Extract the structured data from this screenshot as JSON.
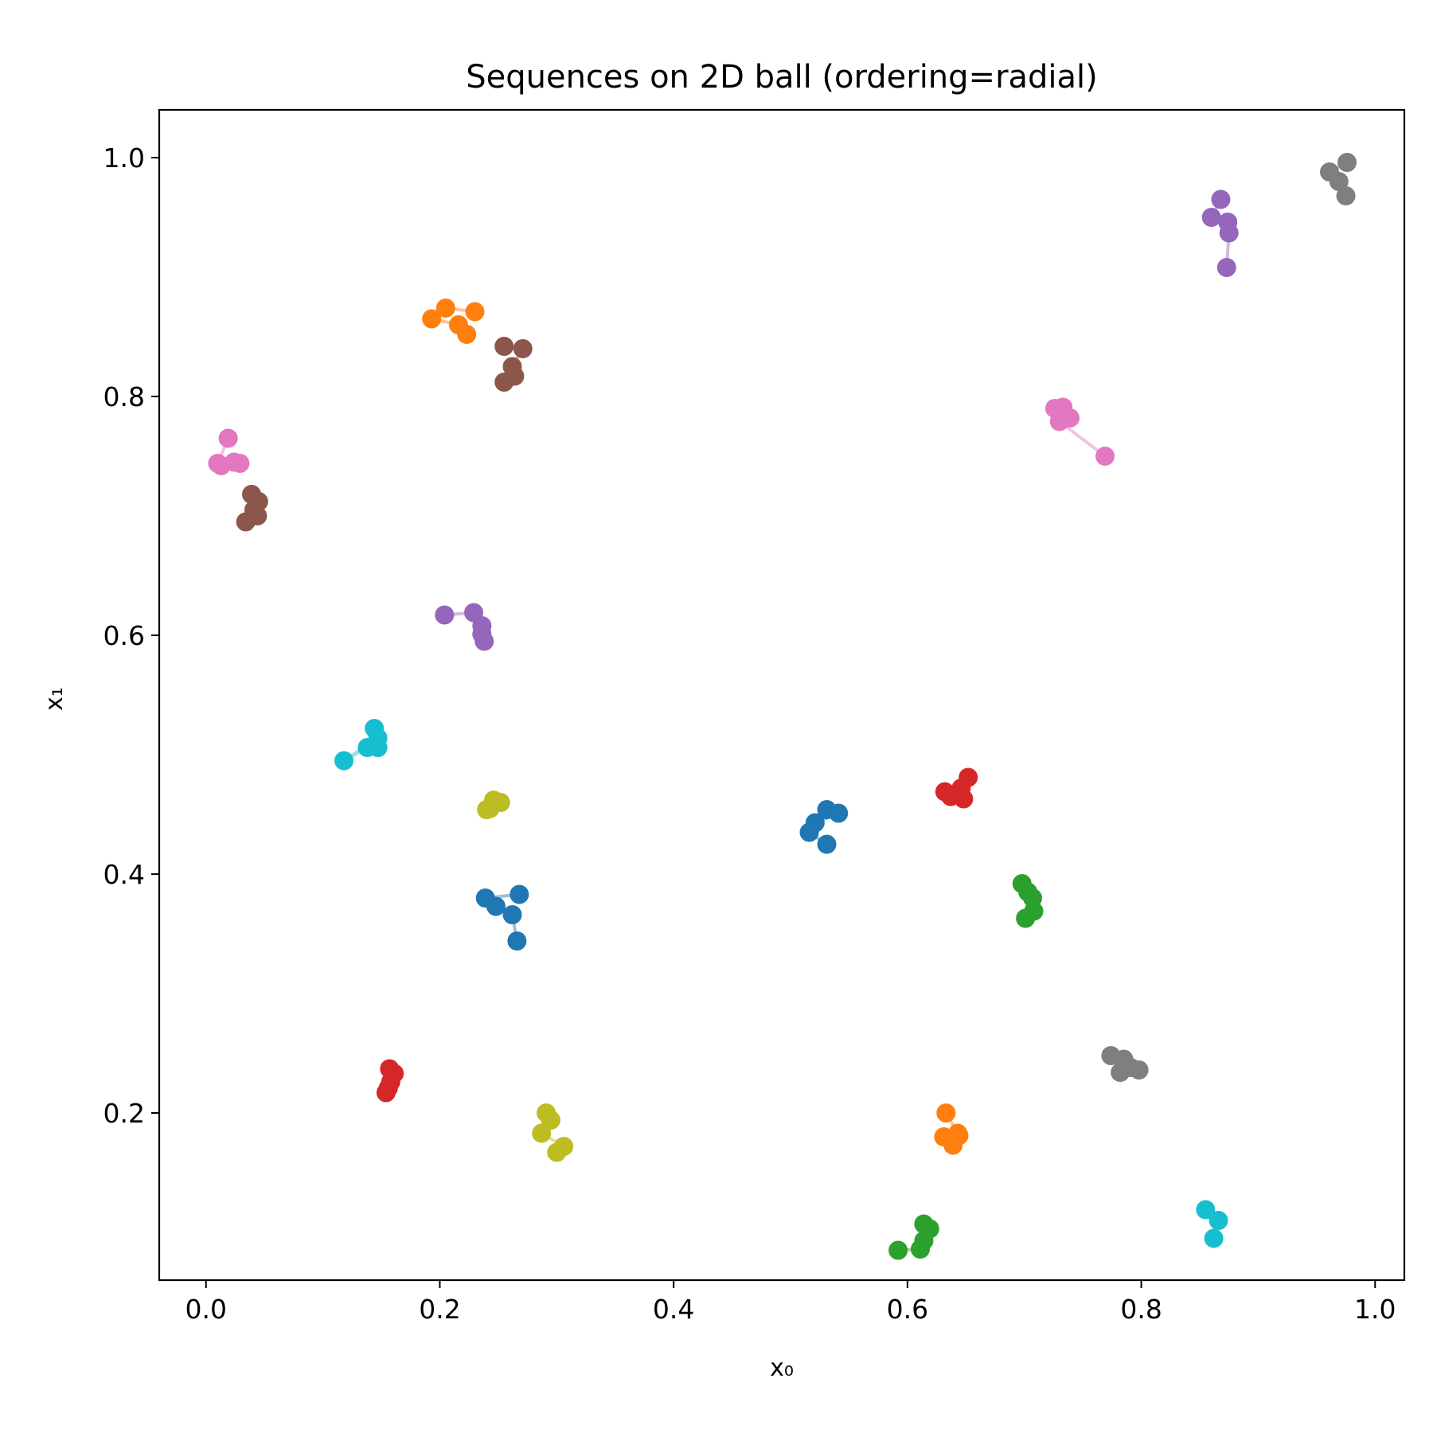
{
  "chart_data": {
    "type": "scatter",
    "title": "Sequences on 2D ball (ordering=radial)",
    "xlabel": "x₀",
    "ylabel": "x₁",
    "xlim": [
      -0.04,
      1.025
    ],
    "ylim": [
      0.06,
      1.04
    ],
    "xticks": [
      "0.0",
      "0.2",
      "0.4",
      "0.6",
      "0.8",
      "1.0"
    ],
    "yticks": [
      "0.2",
      "0.4",
      "0.6",
      "0.8",
      "1.0"
    ],
    "grid": false,
    "series": [
      {
        "color": "#1f77b4",
        "points": [
          [
            0.268,
            0.383
          ],
          [
            0.239,
            0.38
          ],
          [
            0.248,
            0.373
          ],
          [
            0.262,
            0.366
          ],
          [
            0.266,
            0.344
          ]
        ]
      },
      {
        "color": "#1f77b4",
        "points": [
          [
            0.531,
            0.454
          ],
          [
            0.541,
            0.451
          ],
          [
            0.521,
            0.443
          ],
          [
            0.516,
            0.435
          ],
          [
            0.531,
            0.425
          ]
        ]
      },
      {
        "color": "#ff7f0e",
        "points": [
          [
            0.23,
            0.871
          ],
          [
            0.205,
            0.874
          ],
          [
            0.193,
            0.865
          ],
          [
            0.216,
            0.86
          ],
          [
            0.223,
            0.852
          ]
        ]
      },
      {
        "color": "#ff7f0e",
        "points": [
          [
            0.633,
            0.2
          ],
          [
            0.643,
            0.183
          ],
          [
            0.631,
            0.18
          ],
          [
            0.639,
            0.173
          ],
          [
            0.644,
            0.181
          ]
        ]
      },
      {
        "color": "#2ca02c",
        "points": [
          [
            0.698,
            0.392
          ],
          [
            0.703,
            0.385
          ],
          [
            0.707,
            0.38
          ],
          [
            0.708,
            0.369
          ],
          [
            0.701,
            0.363
          ]
        ]
      },
      {
        "color": "#2ca02c",
        "points": [
          [
            0.614,
            0.107
          ],
          [
            0.619,
            0.103
          ],
          [
            0.614,
            0.093
          ],
          [
            0.611,
            0.086
          ],
          [
            0.592,
            0.085
          ]
        ]
      },
      {
        "color": "#d62728",
        "points": [
          [
            0.652,
            0.481
          ],
          [
            0.632,
            0.469
          ],
          [
            0.646,
            0.472
          ],
          [
            0.637,
            0.465
          ],
          [
            0.648,
            0.463
          ]
        ]
      },
      {
        "color": "#d62728",
        "points": [
          [
            0.157,
            0.237
          ],
          [
            0.161,
            0.233
          ],
          [
            0.158,
            0.226
          ],
          [
            0.156,
            0.221
          ],
          [
            0.154,
            0.217
          ]
        ]
      },
      {
        "color": "#9467bd",
        "points": [
          [
            0.204,
            0.617
          ],
          [
            0.229,
            0.619
          ],
          [
            0.236,
            0.608
          ],
          [
            0.236,
            0.601
          ],
          [
            0.238,
            0.595
          ]
        ]
      },
      {
        "color": "#9467bd",
        "points": [
          [
            0.868,
            0.965
          ],
          [
            0.86,
            0.95
          ],
          [
            0.874,
            0.946
          ],
          [
            0.875,
            0.937
          ],
          [
            0.873,
            0.908
          ]
        ]
      },
      {
        "color": "#8c564b",
        "points": [
          [
            0.255,
            0.842
          ],
          [
            0.271,
            0.84
          ],
          [
            0.262,
            0.825
          ],
          [
            0.264,
            0.817
          ],
          [
            0.255,
            0.812
          ]
        ]
      },
      {
        "color": "#8c564b",
        "points": [
          [
            0.039,
            0.718
          ],
          [
            0.045,
            0.712
          ],
          [
            0.041,
            0.705
          ],
          [
            0.044,
            0.7
          ],
          [
            0.034,
            0.695
          ]
        ]
      },
      {
        "color": "#e377c2",
        "points": [
          [
            0.019,
            0.765
          ],
          [
            0.01,
            0.744
          ],
          [
            0.024,
            0.745
          ],
          [
            0.029,
            0.744
          ],
          [
            0.013,
            0.742
          ]
        ]
      },
      {
        "color": "#e377c2",
        "points": [
          [
            0.733,
            0.791
          ],
          [
            0.726,
            0.79
          ],
          [
            0.739,
            0.782
          ],
          [
            0.73,
            0.779
          ],
          [
            0.769,
            0.75
          ]
        ]
      },
      {
        "color": "#7f7f7f",
        "points": [
          [
            0.976,
            0.996
          ],
          [
            0.961,
            0.988
          ],
          [
            0.969,
            0.98
          ],
          [
            0.975,
            0.968
          ]
        ]
      },
      {
        "color": "#7f7f7f",
        "points": [
          [
            0.774,
            0.248
          ],
          [
            0.785,
            0.245
          ],
          [
            0.791,
            0.238
          ],
          [
            0.782,
            0.234
          ],
          [
            0.798,
            0.236
          ]
        ]
      },
      {
        "color": "#bcbd22",
        "points": [
          [
            0.24,
            0.454
          ],
          [
            0.252,
            0.46
          ],
          [
            0.246,
            0.462
          ],
          [
            0.243,
            0.455
          ]
        ]
      },
      {
        "color": "#bcbd22",
        "points": [
          [
            0.291,
            0.2
          ],
          [
            0.295,
            0.194
          ],
          [
            0.287,
            0.183
          ],
          [
            0.306,
            0.172
          ],
          [
            0.3,
            0.167
          ]
        ]
      },
      {
        "color": "#17becf",
        "points": [
          [
            0.144,
            0.522
          ],
          [
            0.147,
            0.506
          ],
          [
            0.138,
            0.506
          ],
          [
            0.118,
            0.495
          ],
          [
            0.147,
            0.514
          ]
        ]
      },
      {
        "color": "#17becf",
        "points": [
          [
            0.855,
            0.119
          ],
          [
            0.866,
            0.11
          ],
          [
            0.862,
            0.095
          ]
        ]
      }
    ]
  }
}
